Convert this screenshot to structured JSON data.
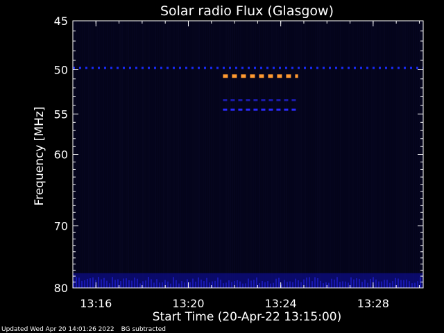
{
  "chart_data": {
    "type": "heatmap",
    "title": "Solar radio Flux (Glasgow)",
    "xlabel": "Start Time (20-Apr-22 13:15:00)",
    "ylabel": "Frequency [MHz]",
    "x_unit": "minutes",
    "x_range": [
      "13:15:00",
      "13:30:10"
    ],
    "y_range_mhz": [
      45,
      80
    ],
    "x_ticks": [
      "13:16",
      "13:20",
      "13:24",
      "13:28"
    ],
    "y_ticks": [
      45,
      50,
      55,
      60,
      70,
      80
    ],
    "y_scale": "log",
    "background_color": "#04041a",
    "features": [
      {
        "name": "interference line",
        "freq_mhz": 49.8,
        "start": "13:15:00",
        "end": "13:30:10",
        "color": "#1a2cff",
        "style": "dashed"
      },
      {
        "name": "burst",
        "freq_mhz": 50.7,
        "start": "13:21:30",
        "end": "13:24:45",
        "color": "#ff9a30",
        "style": "dashed"
      },
      {
        "name": "burst",
        "freq_mhz": 53.4,
        "start": "13:21:30",
        "end": "13:24:45",
        "color": "#1a1aa8",
        "style": "dashed"
      },
      {
        "name": "burst",
        "freq_mhz": 54.5,
        "start": "13:21:30",
        "end": "13:24:45",
        "color": "#2a2aff",
        "style": "dashed"
      },
      {
        "name": "broadband noise",
        "freq_mhz": [
          77.5,
          80
        ],
        "start": "13:15:00",
        "end": "13:30:10",
        "color": "#1111aa",
        "style": "band"
      }
    ]
  },
  "footer": {
    "updated": "Updated Wed Apr 20 14:01:26 2022",
    "note": "BG subtracted"
  }
}
